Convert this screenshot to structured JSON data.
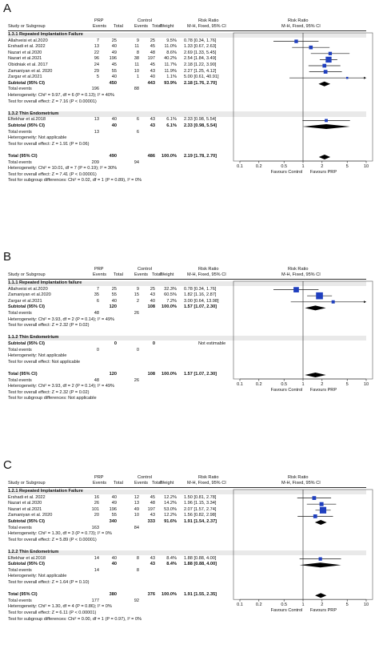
{
  "columns": {
    "study": "Study or Subgroup",
    "group_prp": "PRP",
    "group_control": "Control",
    "events": "Events",
    "total": "Total",
    "weight": "Weight",
    "rr": "Risk Ratio",
    "rr_method": "M-H, Fixed, 95% CI"
  },
  "plot_header": {
    "title": "Risk Ratio",
    "method": "M-H, Fixed, 95% CI"
  },
  "axis": {
    "ticks": [
      "0.1",
      "0.2",
      "0.5",
      "1",
      "2",
      "5",
      "10"
    ]
  },
  "favours": {
    "left": "Favours Control",
    "right": "Favours PRP"
  },
  "colors": {
    "square": "#1f3fbf",
    "line": "#1a1a1a",
    "diamond": "#000000",
    "section_bg": "#e9e9e9"
  },
  "chart_data": [
    {
      "type": "forest",
      "panel_label": "A",
      "axis_scale": "log",
      "xlim": [
        0.1,
        10
      ],
      "subgroups": [
        {
          "title": "1.3.1 Repeated Implantation Failure",
          "studies": [
            {
              "name": "Allahveisi et al.2020",
              "prp_events": "7",
              "prp_total": "25",
              "ctrl_events": "9",
              "ctrl_total": "25",
              "weight": "9.5%",
              "ci_text": "0.78 [0.34, 1.76]",
              "rr": 0.78,
              "lo": 0.34,
              "hi": 1.76,
              "w": 9.5
            },
            {
              "name": "Ershadi et al. 2022",
              "prp_events": "13",
              "prp_total": "40",
              "ctrl_events": "11",
              "ctrl_total": "45",
              "weight": "11.0%",
              "ci_text": "1.33 [0.67, 2.63]",
              "rr": 1.33,
              "lo": 0.67,
              "hi": 2.63,
              "w": 11.0
            },
            {
              "name": "Nazari et al.2020",
              "prp_events": "22",
              "prp_total": "49",
              "ctrl_events": "8",
              "ctrl_total": "48",
              "weight": "8.6%",
              "ci_text": "2.69 [1.33, 5.45]",
              "rr": 2.69,
              "lo": 1.33,
              "hi": 5.45,
              "w": 8.6
            },
            {
              "name": "Nazari et al.2021",
              "prp_events": "96",
              "prp_total": "196",
              "ctrl_events": "38",
              "ctrl_total": "197",
              "weight": "40.2%",
              "ci_text": "2.54 [1.84, 3.49]",
              "rr": 2.54,
              "lo": 1.84,
              "hi": 3.49,
              "w": 40.2
            },
            {
              "name": "Obidniak et al. 2017",
              "prp_events": "24",
              "prp_total": "45",
              "ctrl_events": "11",
              "ctrl_total": "45",
              "weight": "11.7%",
              "ci_text": "2.18 [1.22, 3.90]",
              "rr": 2.18,
              "lo": 1.22,
              "hi": 3.9,
              "w": 11.7
            },
            {
              "name": "Zamaniyan et al. 2020",
              "prp_events": "29",
              "prp_total": "55",
              "ctrl_events": "10",
              "ctrl_total": "43",
              "weight": "11.9%",
              "ci_text": "2.27 [1.25, 4.12]",
              "rr": 2.27,
              "lo": 1.25,
              "hi": 4.12,
              "w": 11.9
            },
            {
              "name": "Zargar et al.2021",
              "prp_events": "5",
              "prp_total": "40",
              "ctrl_events": "1",
              "ctrl_total": "40",
              "weight": "1.1%",
              "ci_text": "5.00 [0.61, 40.91]",
              "rr": 5.0,
              "lo": 0.61,
              "hi": 40.91,
              "w": 1.1
            }
          ],
          "subtotal": {
            "label": "Subtotal (95% CI)",
            "prp_total": "450",
            "ctrl_total": "443",
            "weight": "93.9%",
            "ci_text": "2.18 [1.76, 2.70]",
            "rr": 2.18,
            "lo": 1.76,
            "hi": 2.7
          },
          "total_events": {
            "label": "Total events",
            "prp": "196",
            "ctrl": "88"
          },
          "notes": [
            "Heterogeneity: Chi² = 9.97, df = 6 (P = 0.13); I² = 40%",
            "Test for overall effect: Z = 7.16 (P < 0.00001)"
          ]
        },
        {
          "title": "1.3.2 Thin Endometrium",
          "studies": [
            {
              "name": "Eftekhar et al.2018",
              "prp_events": "13",
              "prp_total": "40",
              "ctrl_events": "6",
              "ctrl_total": "43",
              "weight": "6.1%",
              "ci_text": "2.33 [0.98, 5.54]",
              "rr": 2.33,
              "lo": 0.98,
              "hi": 5.54,
              "w": 6.1
            }
          ],
          "subtotal": {
            "label": "Subtotal (95% CI)",
            "prp_total": "40",
            "ctrl_total": "43",
            "weight": "6.1%",
            "ci_text": "2.33 [0.98, 5.54]",
            "rr": 2.33,
            "lo": 0.98,
            "hi": 5.54
          },
          "total_events": {
            "label": "Total events",
            "prp": "13",
            "ctrl": "6"
          },
          "notes": [
            "Heterogeneity: Not applicable",
            "Test for overall effect: Z = 1.91 (P = 0.06)"
          ]
        }
      ],
      "total": {
        "label": "Total (95% CI)",
        "prp_total": "490",
        "ctrl_total": "486",
        "weight": "100.0%",
        "ci_text": "2.19 [1.78, 2.70]",
        "rr": 2.19,
        "lo": 1.78,
        "hi": 2.7
      },
      "total_events": {
        "label": "Total events",
        "prp": "209",
        "ctrl": "94"
      },
      "notes": [
        "Heterogeneity: Chi² = 10.01, df = 7 (P = 0.19); I² = 30%",
        "Test for overall effect: Z = 7.41 (P < 0.00001)",
        "Test for subgroup differences: Chi² = 0.02, df = 1 (P = 0.89), I² = 0%"
      ]
    },
    {
      "type": "forest",
      "panel_label": "B",
      "axis_scale": "log",
      "xlim": [
        0.1,
        10
      ],
      "subgroups": [
        {
          "title": "1.1.1 Repeated Implantation failure",
          "studies": [
            {
              "name": "Allahveisi et al.2020",
              "prp_events": "7",
              "prp_total": "25",
              "ctrl_events": "9",
              "ctrl_total": "25",
              "weight": "32.3%",
              "ci_text": "0.78 [0.34, 1.76]",
              "rr": 0.78,
              "lo": 0.34,
              "hi": 1.76,
              "w": 32.3
            },
            {
              "name": "Zamaniyan et al.2020",
              "prp_events": "35",
              "prp_total": "55",
              "ctrl_events": "15",
              "ctrl_total": "43",
              "weight": "60.5%",
              "ci_text": "1.82 [1.16, 2.87]",
              "rr": 1.82,
              "lo": 1.16,
              "hi": 2.87,
              "w": 60.5
            },
            {
              "name": "Zargar et al.2021",
              "prp_events": "6",
              "prp_total": "40",
              "ctrl_events": "2",
              "ctrl_total": "40",
              "weight": "7.2%",
              "ci_text": "3.00 [0.64, 13.98]",
              "rr": 3.0,
              "lo": 0.64,
              "hi": 13.98,
              "w": 7.2
            }
          ],
          "subtotal": {
            "label": "Subtotal (95% CI)",
            "prp_total": "120",
            "ctrl_total": "108",
            "weight": "100.0%",
            "ci_text": "1.57 [1.07, 2.30]",
            "rr": 1.57,
            "lo": 1.07,
            "hi": 2.3
          },
          "total_events": {
            "label": "Total events",
            "prp": "48",
            "ctrl": "26"
          },
          "notes": [
            "Heterogeneity: Chi² = 3.93, df = 2 (P = 0.14); I² = 49%",
            "Test for overall effect: Z = 2.32 (P = 0.02)"
          ]
        },
        {
          "title": "1.1.2 Thin Endometrium",
          "studies": [],
          "subtotal": {
            "label": "Subtotal (95% CI)",
            "prp_total": "0",
            "ctrl_total": "0",
            "weight": "",
            "ci_text": "Not estimable"
          },
          "total_events": {
            "label": "Total events",
            "prp": "0",
            "ctrl": "0"
          },
          "notes": [
            "Heterogeneity: Not applicable",
            "Test for overall effect: Not applicable"
          ]
        }
      ],
      "total": {
        "label": "Total (95% CI)",
        "prp_total": "120",
        "ctrl_total": "108",
        "weight": "100.0%",
        "ci_text": "1.57 [1.07, 2.30]",
        "rr": 1.57,
        "lo": 1.07,
        "hi": 2.3
      },
      "total_events": {
        "label": "Total events",
        "prp": "48",
        "ctrl": "26"
      },
      "notes": [
        "Heterogeneity: Chi² = 3.93, df = 2 (P = 0.14); I² = 49%",
        "Test for overall effect: Z = 2.32 (P = 0.02)",
        "Test for subgroup differences: Not applicable"
      ]
    },
    {
      "type": "forest",
      "panel_label": "C",
      "axis_scale": "log",
      "xlim": [
        0.1,
        10
      ],
      "subgroups": [
        {
          "title": "1.2.1 Repeated Implantation Failure",
          "studies": [
            {
              "name": "Ershadi et al. 2022",
              "prp_events": "16",
              "prp_total": "40",
              "ctrl_events": "12",
              "ctrl_total": "45",
              "weight": "12.2%",
              "ci_text": "1.50 [0.81, 2.78]",
              "rr": 1.5,
              "lo": 0.81,
              "hi": 2.78,
              "w": 12.2
            },
            {
              "name": "Nazari et al.2020",
              "prp_events": "26",
              "prp_total": "49",
              "ctrl_events": "13",
              "ctrl_total": "48",
              "weight": "14.2%",
              "ci_text": "1.96 [1.15, 3.34]",
              "rr": 1.96,
              "lo": 1.15,
              "hi": 3.34,
              "w": 14.2
            },
            {
              "name": "Nazari et al.2021",
              "prp_events": "101",
              "prp_total": "196",
              "ctrl_events": "49",
              "ctrl_total": "197",
              "weight": "53.0%",
              "ci_text": "2.07 [1.57, 2.74]",
              "rr": 2.07,
              "lo": 1.57,
              "hi": 2.74,
              "w": 53.0
            },
            {
              "name": "Zamaniyan et al. 2020",
              "prp_events": "20",
              "prp_total": "55",
              "ctrl_events": "10",
              "ctrl_total": "43",
              "weight": "12.2%",
              "ci_text": "1.56 [0.82, 2.98]",
              "rr": 1.56,
              "lo": 0.82,
              "hi": 2.98,
              "w": 12.2
            }
          ],
          "subtotal": {
            "label": "Subtotal (95% CI)",
            "prp_total": "340",
            "ctrl_total": "333",
            "weight": "91.6%",
            "ci_text": "1.91 [1.54, 2.37]",
            "rr": 1.91,
            "lo": 1.54,
            "hi": 2.37
          },
          "total_events": {
            "label": "Total events",
            "prp": "163",
            "ctrl": "84"
          },
          "notes": [
            "Heterogeneity: Chi² = 1.30, df = 3 (P = 0.73); I² = 0%",
            "Test for overall effect: Z = 5.89 (P < 0.00001)"
          ]
        },
        {
          "title": "1.2.2 Thin Endometrium",
          "studies": [
            {
              "name": "Eftekhar et al.2018",
              "prp_events": "14",
              "prp_total": "40",
              "ctrl_events": "8",
              "ctrl_total": "43",
              "weight": "8.4%",
              "ci_text": "1.88 [0.88, 4.00]",
              "rr": 1.88,
              "lo": 0.88,
              "hi": 4.0,
              "w": 8.4
            }
          ],
          "subtotal": {
            "label": "Subtotal (95% CI)",
            "prp_total": "40",
            "ctrl_total": "43",
            "weight": "8.4%",
            "ci_text": "1.88 [0.88, 4.00]",
            "rr": 1.88,
            "lo": 0.88,
            "hi": 4.0
          },
          "total_events": {
            "label": "Total events",
            "prp": "14",
            "ctrl": "8"
          },
          "notes": [
            "Heterogeneity: Not applicable",
            "Test for overall effect: Z = 1.64 (P = 0.10)"
          ]
        }
      ],
      "total": {
        "label": "Total (95% CI)",
        "prp_total": "380",
        "ctrl_total": "376",
        "weight": "100.0%",
        "ci_text": "1.91 [1.55, 2.35]",
        "rr": 1.91,
        "lo": 1.55,
        "hi": 2.35
      },
      "total_events": {
        "label": "Total events",
        "prp": "177",
        "ctrl": "92"
      },
      "notes": [
        "Heterogeneity: Chi² = 1.30, df = 4 (P = 0.86); I² = 0%",
        "Test for overall effect: Z = 6.11 (P < 0.00001)",
        "Test for subgroup differences: Chi² = 0.00, df = 1 (P = 0.97), I² = 0%"
      ]
    }
  ]
}
